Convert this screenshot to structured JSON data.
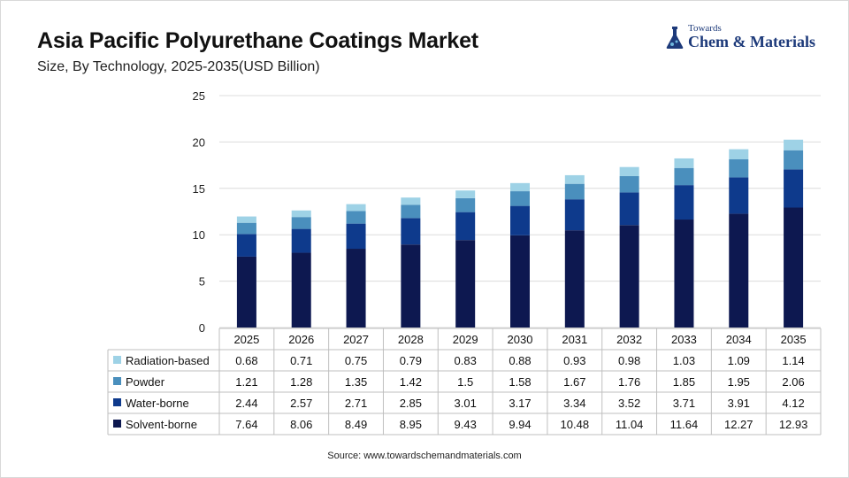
{
  "header": {
    "title": "Asia Pacific Polyurethane Coatings Market",
    "subtitle": "Size, By Technology, 2025-2035(USD Billion)"
  },
  "logo": {
    "small": "Towards",
    "big": "Chem & Materials"
  },
  "source": "Source: www.towardschemandmaterials.com",
  "chart_data": {
    "type": "bar",
    "stacked": true,
    "categories": [
      "2025",
      "2026",
      "2027",
      "2028",
      "2029",
      "2030",
      "2031",
      "2032",
      "2033",
      "2034",
      "2035"
    ],
    "series": [
      {
        "name": "Radiation-based",
        "color": "#9ed2e6",
        "values": [
          0.68,
          0.71,
          0.75,
          0.79,
          0.83,
          0.88,
          0.93,
          0.98,
          1.03,
          1.09,
          1.14
        ],
        "labels": [
          "0.68",
          "0.71",
          "0.75",
          "0.79",
          "0.83",
          "0.88",
          "0.93",
          "0.98",
          "1.03",
          "1.09",
          "1.14"
        ]
      },
      {
        "name": "Powder",
        "color": "#4a8fbd",
        "values": [
          1.21,
          1.28,
          1.35,
          1.42,
          1.5,
          1.58,
          1.67,
          1.76,
          1.85,
          1.95,
          2.06
        ],
        "labels": [
          "1.21",
          "1.28",
          "1.35",
          "1.42",
          "1.5",
          "1.58",
          "1.67",
          "1.76",
          "1.85",
          "1.95",
          "2.06"
        ]
      },
      {
        "name": "Water-borne",
        "color": "#0e3a8c",
        "values": [
          2.44,
          2.57,
          2.71,
          2.85,
          3.01,
          3.17,
          3.34,
          3.52,
          3.71,
          3.91,
          4.12
        ],
        "labels": [
          "2.44",
          "2.57",
          "2.71",
          "2.85",
          "3.01",
          "3.17",
          "3.34",
          "3.52",
          "3.71",
          "3.91",
          "4.12"
        ]
      },
      {
        "name": "Solvent-borne",
        "color": "#0d1850",
        "values": [
          7.64,
          8.06,
          8.49,
          8.95,
          9.43,
          9.94,
          10.48,
          11.04,
          11.64,
          12.27,
          12.93
        ],
        "labels": [
          "7.64",
          "8.06",
          "8.49",
          "8.95",
          "9.43",
          "9.94",
          "10.48",
          "11.04",
          "11.64",
          "12.27",
          "12.93"
        ]
      }
    ],
    "stack_order_bottom_to_top": [
      "Solvent-borne",
      "Water-borne",
      "Powder",
      "Radiation-based"
    ],
    "ylim": [
      0,
      25
    ],
    "yticks": [
      "0",
      "5",
      "10",
      "15",
      "20",
      "25"
    ],
    "grid": true,
    "legend": "data-table-left"
  }
}
